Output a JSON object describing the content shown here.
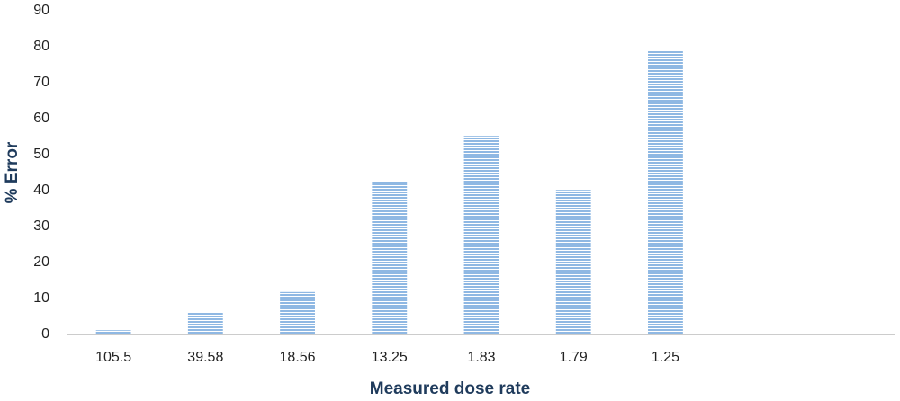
{
  "chart_data": {
    "type": "bar",
    "x_label": "Measured dose rate",
    "y_label": "% Error",
    "categories": [
      "105.5",
      "39.58",
      "18.56",
      "13.25",
      "1.83",
      "1.79",
      "1.25",
      null,
      null
    ],
    "values": [
      1.2,
      6,
      11.8,
      42.5,
      55.2,
      40.2,
      79,
      null,
      null
    ],
    "color": "#8fb8e3",
    "ylim": [
      0,
      90
    ],
    "yticks": [
      0,
      10,
      20,
      30,
      40,
      50,
      60,
      70,
      80,
      90
    ],
    "grid": false
  }
}
